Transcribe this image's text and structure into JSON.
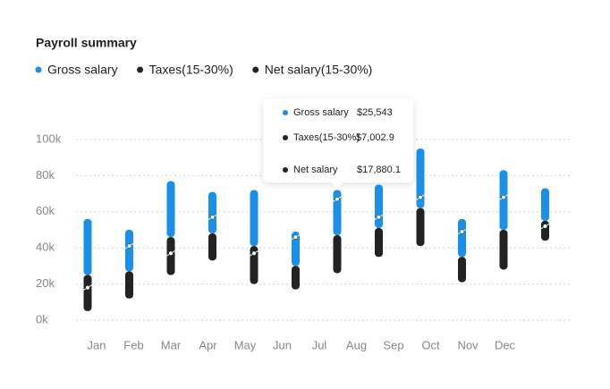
{
  "chart_data": {
    "type": "bar",
    "title": "Payroll summary",
    "categories": [
      "Jan",
      "Feb",
      "Mar",
      "Apr",
      "May",
      "Jun",
      "Jul",
      "Aug",
      "Sep",
      "Oct",
      "Nov",
      "Dec"
    ],
    "series": [
      {
        "name": "Gross salary",
        "color": "#1a90e8",
        "values": [
          [
            25,
            56
          ],
          [
            27,
            50
          ],
          [
            46,
            77
          ],
          [
            48,
            71
          ],
          [
            41,
            72
          ],
          [
            30,
            49
          ],
          [
            47,
            72
          ],
          [
            51,
            75
          ],
          [
            62,
            95
          ],
          [
            35,
            56
          ],
          [
            50,
            83
          ],
          [
            55,
            73
          ]
        ]
      },
      {
        "name": "Taxes(15-30%)",
        "color": "#232323",
        "values": [
          [
            5,
            25
          ],
          [
            12,
            27
          ],
          [
            25,
            46
          ],
          [
            33,
            48
          ],
          [
            20,
            41
          ],
          [
            17,
            30
          ],
          [
            26,
            47
          ],
          [
            35,
            51
          ],
          [
            41,
            62
          ],
          [
            21,
            35
          ],
          [
            28,
            50
          ],
          [
            44,
            55
          ]
        ]
      },
      {
        "name": "Net salary(15-30%)",
        "color": "#232323",
        "values": [
          18,
          41,
          37,
          57,
          37,
          46,
          67,
          57,
          68,
          49,
          68,
          52
        ]
      }
    ],
    "ylim": [
      0,
      100
    ],
    "yticks": [
      {
        "value": 0,
        "label": "0k"
      },
      {
        "value": 20,
        "label": "20k"
      },
      {
        "value": 40,
        "label": "40k"
      },
      {
        "value": 60,
        "label": "60k"
      },
      {
        "value": 80,
        "label": "80k"
      },
      {
        "value": 100,
        "label": "100k"
      }
    ],
    "grid": true,
    "tooltip": {
      "items": [
        {
          "name": "Gross salary",
          "value_label": "$25,543"
        },
        {
          "name": "Taxes(15-30%)",
          "value_label": "$7,002.9"
        },
        {
          "name": "Net salary",
          "value_label": "$17,880.1"
        }
      ]
    }
  }
}
